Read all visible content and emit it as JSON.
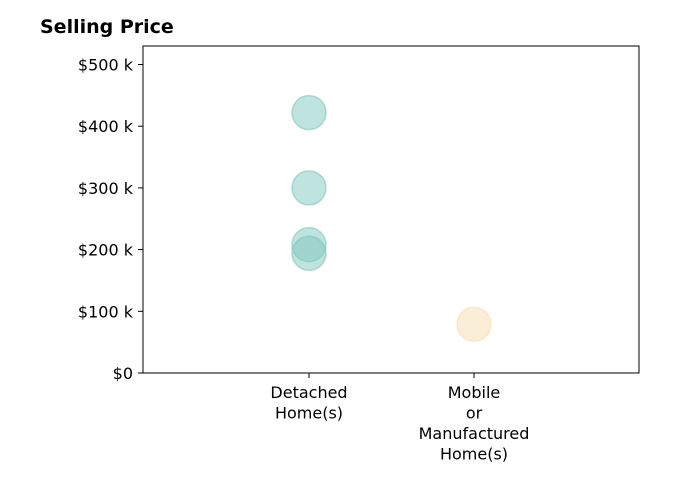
{
  "chart_data": {
    "type": "scatter",
    "title": "Selling Price",
    "xlabel": "",
    "ylabel": "",
    "categories": [
      "Detached Home(s)",
      "Mobile or Manufactured Home(s)"
    ],
    "category_lines": [
      [
        "Detached",
        "Home(s)"
      ],
      [
        "Mobile",
        "or",
        "Manufactured",
        "Home(s)"
      ]
    ],
    "series": [
      {
        "category": "Detached Home(s)",
        "values": [
          422000,
          300000,
          208000,
          194000
        ],
        "color": "#7fc7bd"
      },
      {
        "category": "Mobile or Manufactured Home(s)",
        "values": [
          79000
        ],
        "color": "#f5deb0"
      }
    ],
    "ylim": [
      0,
      530000
    ],
    "yticks": [
      0,
      100000,
      200000,
      300000,
      400000,
      500000
    ],
    "ytick_labels": [
      "$0",
      "$100 k",
      "$200 k",
      "$300 k",
      "$400 k",
      "$500 k"
    ],
    "grid": false,
    "legend": "none"
  }
}
